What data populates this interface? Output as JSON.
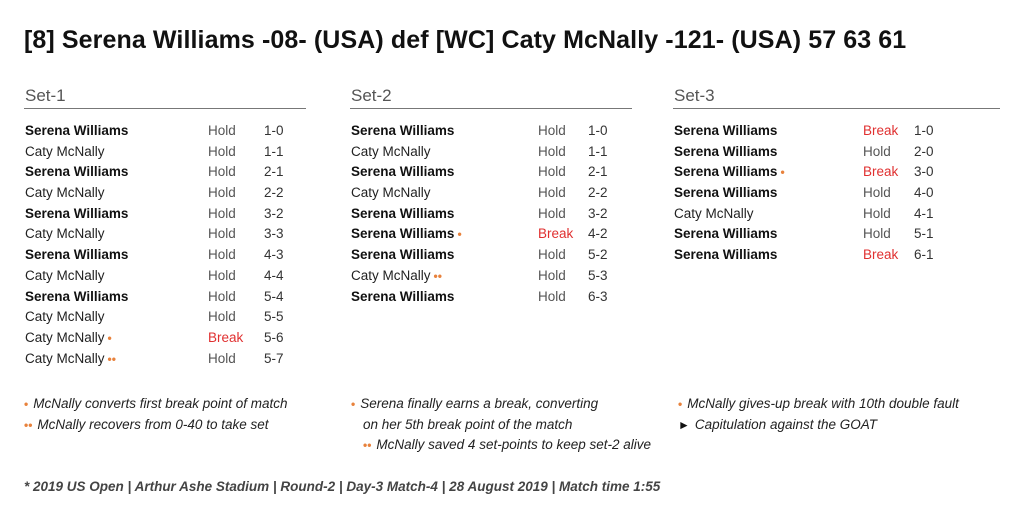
{
  "title": "[8] Serena Williams -08- (USA) def [WC] Caty McNally -121- (USA) 57 63 61",
  "colors": {
    "accent": "#e8823c",
    "break": "#e03030"
  },
  "sets": [
    {
      "label": "Set-1",
      "games": [
        {
          "player": "Serena Williams",
          "bold": true,
          "marker": "",
          "result": "Hold",
          "score": "1-0"
        },
        {
          "player": "Caty McNally",
          "bold": false,
          "marker": "",
          "result": "Hold",
          "score": "1-1"
        },
        {
          "player": "Serena Williams",
          "bold": true,
          "marker": "",
          "result": "Hold",
          "score": "2-1"
        },
        {
          "player": "Caty McNally",
          "bold": false,
          "marker": "",
          "result": "Hold",
          "score": "2-2"
        },
        {
          "player": "Serena Williams",
          "bold": true,
          "marker": "",
          "result": "Hold",
          "score": "3-2"
        },
        {
          "player": "Caty McNally",
          "bold": false,
          "marker": "",
          "result": "Hold",
          "score": "3-3"
        },
        {
          "player": "Serena Williams",
          "bold": true,
          "marker": "",
          "result": "Hold",
          "score": "4-3"
        },
        {
          "player": "Caty McNally",
          "bold": false,
          "marker": "",
          "result": "Hold",
          "score": "4-4"
        },
        {
          "player": "Serena Williams",
          "bold": true,
          "marker": "",
          "result": "Hold",
          "score": "5-4"
        },
        {
          "player": "Caty McNally",
          "bold": false,
          "marker": "",
          "result": "Hold",
          "score": "5-5"
        },
        {
          "player": "Caty McNally",
          "bold": false,
          "marker": "•",
          "result": "Break",
          "score": "5-6"
        },
        {
          "player": "Caty McNally",
          "bold": false,
          "marker": "••",
          "result": "Hold",
          "score": "5-7"
        }
      ]
    },
    {
      "label": "Set-2",
      "games": [
        {
          "player": "Serena Williams",
          "bold": true,
          "marker": "",
          "result": "Hold",
          "score": "1-0"
        },
        {
          "player": "Caty McNally",
          "bold": false,
          "marker": "",
          "result": "Hold",
          "score": "1-1"
        },
        {
          "player": "Serena Williams",
          "bold": true,
          "marker": "",
          "result": "Hold",
          "score": "2-1"
        },
        {
          "player": "Caty McNally",
          "bold": false,
          "marker": "",
          "result": "Hold",
          "score": "2-2"
        },
        {
          "player": "Serena Williams",
          "bold": true,
          "marker": "",
          "result": "Hold",
          "score": "3-2"
        },
        {
          "player": "Serena Williams",
          "bold": true,
          "marker": "•",
          "result": "Break",
          "score": "4-2"
        },
        {
          "player": "Serena Williams",
          "bold": true,
          "marker": "",
          "result": "Hold",
          "score": "5-2"
        },
        {
          "player": "Caty McNally",
          "bold": false,
          "marker": "••",
          "result": "Hold",
          "score": "5-3"
        },
        {
          "player": "Serena Williams",
          "bold": true,
          "marker": "",
          "result": "Hold",
          "score": "6-3"
        }
      ]
    },
    {
      "label": "Set-3",
      "games": [
        {
          "player": "Serena Williams",
          "bold": true,
          "marker": "",
          "result": "Break",
          "score": "1-0"
        },
        {
          "player": "Serena Williams",
          "bold": true,
          "marker": "",
          "result": "Hold",
          "score": "2-0"
        },
        {
          "player": "Serena Williams",
          "bold": true,
          "marker": "•",
          "result": "Break",
          "score": "3-0"
        },
        {
          "player": "Serena Williams",
          "bold": true,
          "marker": "",
          "result": "Hold",
          "score": "4-0"
        },
        {
          "player": "Caty McNally",
          "bold": false,
          "marker": "",
          "result": "Hold",
          "score": "4-1"
        },
        {
          "player": "Serena Williams",
          "bold": true,
          "marker": "",
          "result": "Hold",
          "score": "5-1"
        },
        {
          "player": "Serena Williams",
          "bold": true,
          "marker": "",
          "result": "Break",
          "score": "6-1"
        }
      ]
    }
  ],
  "notes": [
    [
      {
        "marker": "•",
        "text": "McNally converts first break point of match",
        "indent": false
      },
      {
        "marker": "••",
        "text": "McNally recovers from 0-40 to take set",
        "indent": false
      }
    ],
    [
      {
        "marker": "•",
        "text": "Serena finally earns a break, converting",
        "indent": false
      },
      {
        "marker": "",
        "text": "on her 5th break point of the match",
        "indent": true
      },
      {
        "marker": "••",
        "text": "McNally saved 4 set-points to keep set-2 alive",
        "indent": true
      }
    ],
    [
      {
        "marker": "•",
        "text": "McNally gives-up break with 10th double fault",
        "indent": false
      },
      {
        "marker": "►",
        "text": "Capitulation against the GOAT",
        "indent": false
      }
    ]
  ],
  "footer": "* 2019 US Open | Arthur Ashe Stadium | Round-2 | Day-3 Match-4 | 28 August 2019 | Match time 1:55"
}
